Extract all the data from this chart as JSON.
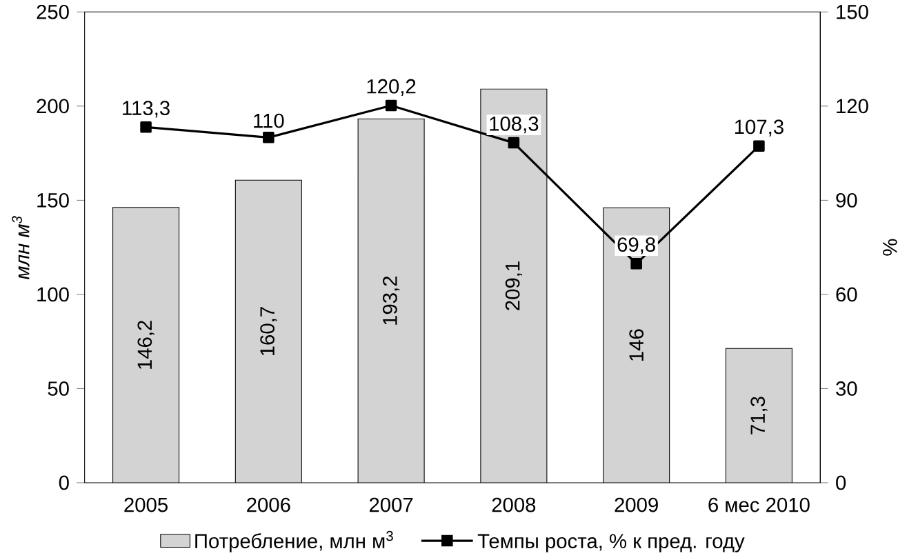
{
  "chart_data": {
    "type": "bar",
    "categories": [
      "2005",
      "2006",
      "2007",
      "2008",
      "2009",
      "6 мес 2010"
    ],
    "ylabel": "млн м$^{3}$",
    "y2label": "%",
    "ylim": [
      0,
      250
    ],
    "yticks": [
      0,
      50,
      100,
      150,
      200,
      250
    ],
    "y2lim": [
      0,
      150
    ],
    "y2ticks": [
      0,
      30,
      60,
      90,
      120,
      150
    ],
    "legend": "bottom",
    "grid": false,
    "series": [
      {
        "name": "Потребление, млн м$^{3}$",
        "color": "#d3d3d3",
        "values": [
          146.2,
          160.7,
          193.2,
          209.1,
          146,
          71.3
        ],
        "value_labels": [
          "146,2",
          "160,7",
          "193,2",
          "209,1",
          "146",
          "71,3"
        ]
      },
      {
        "name": "Темпы роста, % к пред. году",
        "type": "line",
        "axis": "y2",
        "color": "#000000",
        "marker": "square",
        "line_style": "solid",
        "values": [
          113.3,
          110,
          120.2,
          108.3,
          69.8,
          107.3
        ],
        "value_labels": [
          "113,3",
          "110",
          "120,2",
          "108,3",
          "69,8",
          "107,3"
        ]
      }
    ]
  }
}
